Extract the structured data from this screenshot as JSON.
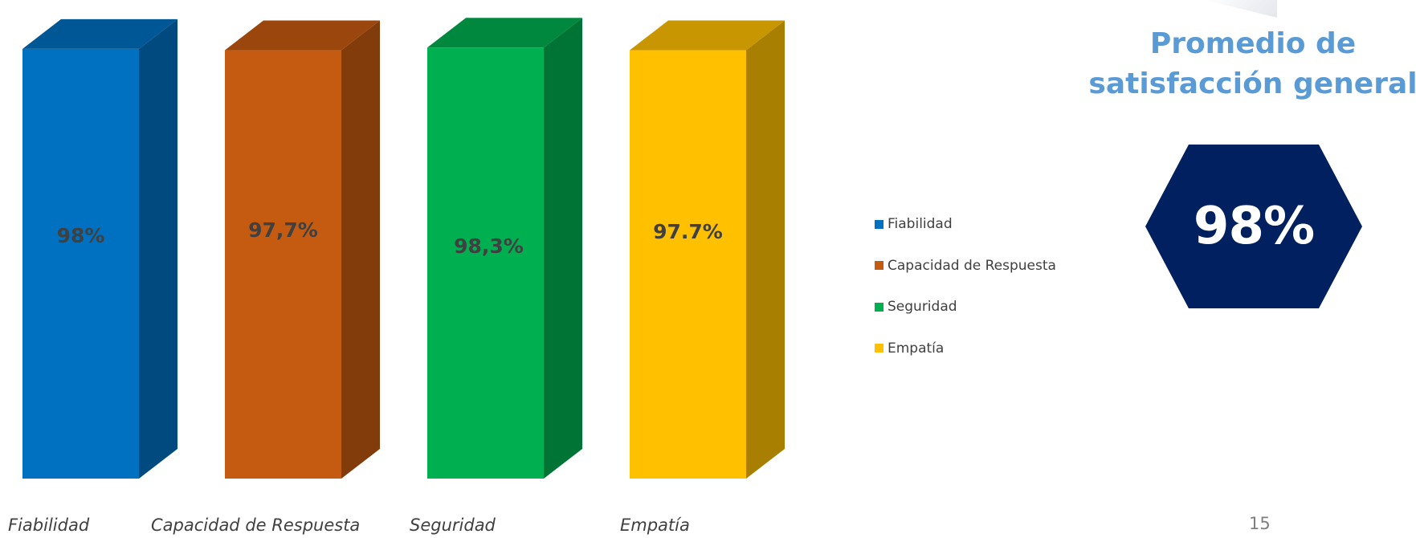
{
  "chart_data": {
    "type": "bar",
    "categories": [
      "Fiabilidad",
      "Capacidad de Respuesta",
      "Seguridad",
      "Empatía"
    ],
    "series": [
      {
        "values": [
          98,
          97.7,
          98.3,
          97.7
        ],
        "data_labels": [
          "98%",
          "97,7%",
          "98,3%",
          "97.7%"
        ]
      }
    ],
    "legend": {
      "position": "right",
      "items": [
        "Fiabilidad",
        "Capacidad de Respuesta",
        "Seguridad",
        "Empatía"
      ]
    },
    "colors": [
      "#0070c0",
      "#c55a11",
      "#00b050",
      "#ffc000"
    ],
    "three_d": true,
    "grid": false
  },
  "summary": {
    "title_line1": "Promedio de",
    "title_line2": "satisfacción general",
    "value": "98%",
    "title_color": "#5b9bd5",
    "hexagon_color": "#002060"
  },
  "page_number": "15"
}
